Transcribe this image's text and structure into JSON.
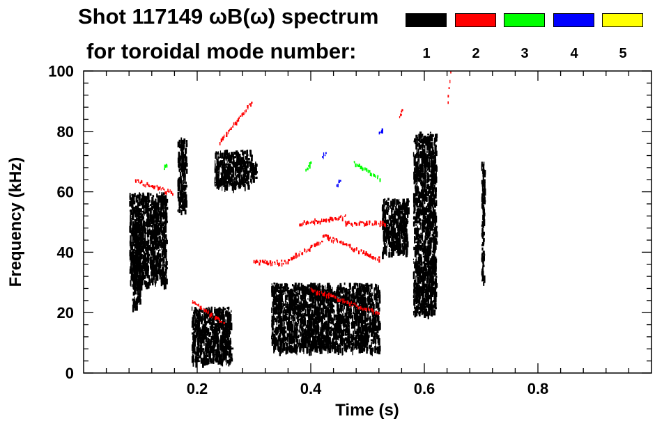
{
  "chart_data": {
    "type": "scatter",
    "title_line1": "Shot 117149 ωB(ω) spectrum",
    "title_line2": "for toroidal mode number:",
    "xlabel": "Time (s)",
    "ylabel": "Frequency (kHz)",
    "xlim": [
      0.0,
      1.0
    ],
    "ylim": [
      0,
      100
    ],
    "xticks": [
      0.2,
      0.4,
      0.6,
      0.8
    ],
    "xtick_labels": [
      "0.2",
      "0.4",
      "0.6",
      "0.8"
    ],
    "yticks": [
      0,
      20,
      40,
      60,
      80,
      100
    ],
    "ytick_labels": [
      "0",
      "20",
      "40",
      "60",
      "80",
      "100"
    ],
    "legend": [
      {
        "label": "1",
        "color": "#000000"
      },
      {
        "label": "2",
        "color": "#ff0000"
      },
      {
        "label": "3",
        "color": "#00ff00"
      },
      {
        "label": "4",
        "color": "#0000ff"
      },
      {
        "label": "5",
        "color": "#ffff00"
      }
    ],
    "series": [
      {
        "legend_index": 0,
        "regions": [
          {
            "t": [
              0.08,
              0.145
            ],
            "f": [
              30,
              60
            ]
          },
          {
            "t": [
              0.085,
              0.1
            ],
            "f": [
              22,
              50
            ]
          },
          {
            "t": [
              0.165,
              0.18
            ],
            "f": [
              54,
              78
            ]
          },
          {
            "t": [
              0.19,
              0.26
            ],
            "f": [
              4,
              22
            ]
          },
          {
            "t": [
              0.23,
              0.295
            ],
            "f": [
              62,
              74
            ]
          },
          {
            "t": [
              0.295,
              0.305
            ],
            "f": [
              65,
              70
            ]
          },
          {
            "t": [
              0.33,
              0.52
            ],
            "f": [
              8,
              30
            ]
          },
          {
            "t": [
              0.525,
              0.57
            ],
            "f": [
              40,
              58
            ]
          },
          {
            "t": [
              0.58,
              0.62
            ],
            "f": [
              20,
              80
            ]
          },
          {
            "t": [
              0.7,
              0.705
            ],
            "f": [
              30,
              70
            ]
          }
        ]
      },
      {
        "legend_index": 1,
        "segments": [
          {
            "t": [
              0.09,
              0.155
            ],
            "f": [
              64,
              60
            ]
          },
          {
            "t": [
              0.24,
              0.295
            ],
            "f": [
              77,
              90
            ]
          },
          {
            "t": [
              0.19,
              0.245
            ],
            "f": [
              24,
              17
            ]
          },
          {
            "t": [
              0.3,
              0.36
            ],
            "f": [
              37,
              37
            ]
          },
          {
            "t": [
              0.36,
              0.42
            ],
            "f": [
              38,
              44
            ]
          },
          {
            "t": [
              0.42,
              0.52
            ],
            "f": [
              46,
              38
            ]
          },
          {
            "t": [
              0.38,
              0.46
            ],
            "f": [
              50,
              52
            ]
          },
          {
            "t": [
              0.46,
              0.53
            ],
            "f": [
              50,
              50
            ]
          },
          {
            "t": [
              0.4,
              0.52
            ],
            "f": [
              28,
              20
            ]
          },
          {
            "t": [
              0.555,
              0.56
            ],
            "f": [
              85,
              87
            ]
          },
          {
            "t": [
              0.64,
              0.645
            ],
            "f": [
              90,
              100
            ]
          }
        ]
      },
      {
        "legend_index": 2,
        "segments": [
          {
            "t": [
              0.475,
              0.52
            ],
            "f": [
              70,
              65
            ]
          },
          {
            "t": [
              0.14,
              0.145
            ],
            "f": [
              68,
              69
            ]
          },
          {
            "t": [
              0.39,
              0.4
            ],
            "f": [
              68,
              70
            ]
          }
        ]
      },
      {
        "legend_index": 3,
        "segments": [
          {
            "t": [
              0.42,
              0.425
            ],
            "f": [
              72,
              73
            ]
          },
          {
            "t": [
              0.445,
              0.45
            ],
            "f": [
              63,
              64
            ]
          },
          {
            "t": [
              0.52,
              0.525
            ],
            "f": [
              80,
              81
            ]
          }
        ]
      }
    ]
  }
}
